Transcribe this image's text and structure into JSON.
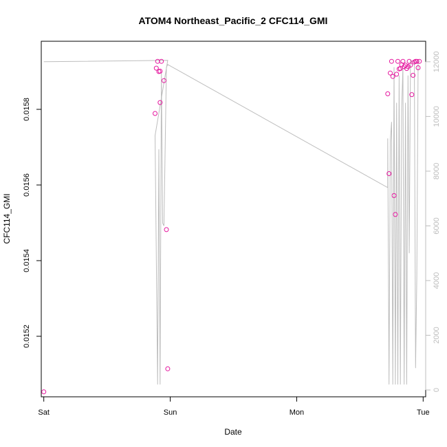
{
  "chart_data": {
    "type": "scatter",
    "title": "ATOM4 Northeast_Pacific_2 CFC114_GMI",
    "xlabel": "Date",
    "ylabel": "CFC114_GMI",
    "xlim": [
      -0.02,
      3.02
    ],
    "x_ticks": [
      {
        "value": 0,
        "label": "Sat"
      },
      {
        "value": 1,
        "label": "Sun"
      },
      {
        "value": 2,
        "label": "Mon"
      },
      {
        "value": 3,
        "label": "Tue"
      }
    ],
    "ylim": [
      0.01504,
      0.01598
    ],
    "y_ticks": [
      {
        "value": 0.0152,
        "label": "0.0152"
      },
      {
        "value": 0.0154,
        "label": "0.0154"
      },
      {
        "value": 0.0156,
        "label": "0.0156"
      },
      {
        "value": 0.0158,
        "label": "0.0158"
      }
    ],
    "y2lim": [
      -250,
      12750
    ],
    "y2_ticks": [
      {
        "value": 0,
        "label": "0"
      },
      {
        "value": 2000,
        "label": "2000"
      },
      {
        "value": 4000,
        "label": "4000"
      },
      {
        "value": 6000,
        "label": "6000"
      },
      {
        "value": 8000,
        "label": "8000"
      },
      {
        "value": 10000,
        "label": "10000"
      },
      {
        "value": 12000,
        "label": "12000"
      }
    ],
    "grid": false,
    "series": [
      {
        "type": "scatter",
        "axis": "left",
        "color": "#e5169e",
        "marker": "open-circle",
        "x": [
          0.0,
          0.88,
          0.89,
          0.9,
          0.91,
          0.92,
          0.92,
          0.93,
          0.95,
          0.97,
          0.98,
          2.72,
          2.73,
          2.74,
          2.75,
          2.76,
          2.77,
          2.78,
          2.79,
          2.8,
          2.81,
          2.82,
          2.83,
          2.84,
          2.85,
          2.86,
          2.87,
          2.88,
          2.89,
          2.9,
          2.91,
          2.92,
          2.93,
          2.94,
          2.95,
          2.96,
          2.97
        ],
        "y": [
          0.015053,
          0.015789,
          0.015909,
          0.015927,
          0.0159,
          0.015818,
          0.015901,
          0.015927,
          0.015876,
          0.015482,
          0.015114,
          0.015841,
          0.01563,
          0.015896,
          0.015927,
          0.015887,
          0.015572,
          0.015522,
          0.015893,
          0.015927,
          0.015907,
          0.015908,
          0.015918,
          0.015927,
          0.015913,
          0.015917,
          0.015908,
          0.015913,
          0.015927,
          0.015917,
          0.015839,
          0.01589,
          0.015925,
          0.015927,
          0.015927,
          0.01591,
          0.015927
        ]
      },
      {
        "type": "line",
        "axis": "right",
        "color": "#bdbdbd",
        "x": [
          0.0,
          0.98,
          0.88,
          0.9,
          0.91,
          0.92,
          0.93,
          0.94,
          0.95,
          0.97,
          0.98,
          2.72,
          2.72,
          2.73,
          2.74,
          2.75,
          2.76,
          2.77,
          2.78,
          2.79,
          2.8,
          2.81,
          2.82,
          2.83,
          2.84,
          2.85,
          2.86,
          2.87,
          2.88,
          2.89,
          2.9,
          2.91,
          2.92,
          2.93,
          2.94,
          2.95,
          2.96,
          2.97
        ],
        "y": [
          12000,
          12050,
          9300,
          200,
          8800,
          200,
          11600,
          6100,
          6000,
          11800,
          11900,
          7400,
          9200,
          200,
          9100,
          9800,
          200,
          11800,
          200,
          10500,
          200,
          11500,
          200,
          10300,
          11800,
          200,
          10500,
          200,
          11500,
          5000,
          12050,
          12000,
          12050,
          12000,
          800,
          4100,
          12000,
          12050
        ]
      }
    ]
  }
}
